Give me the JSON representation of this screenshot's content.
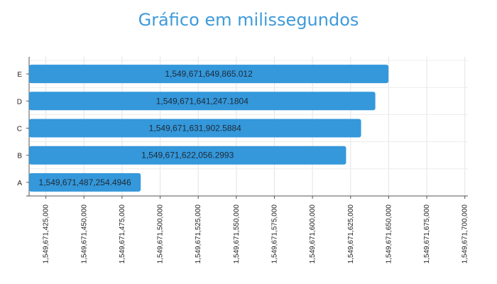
{
  "chart_data": {
    "type": "bar",
    "orientation": "horizontal",
    "title": "Gráfico em milissegundos",
    "categories": [
      "A",
      "B",
      "C",
      "D",
      "E"
    ],
    "values": [
      1549671487254.4946,
      1549671622056.2993,
      1549671631902.5884,
      1549671641247.1804,
      1549671649865.012
    ],
    "value_labels": [
      "1,549,671,487,254.4946",
      "1,549,671,622,056.2993",
      "1,549,671,631,902.5884",
      "1,549,671,641,247.1804",
      "1,549,671,649,865.012"
    ],
    "xlim": [
      1549671414000,
      1549671702000
    ],
    "xticks": [
      1549671425000,
      1549671450000,
      1549671475000,
      1549671500000,
      1549671525000,
      1549671550000,
      1549671575000,
      1549671600000,
      1549671625000,
      1549671650000,
      1549671675000,
      1549671700000
    ],
    "xtick_labels": [
      "1,549,671,425,000",
      "1,549,671,450,000",
      "1,549,671,475,000",
      "1,549,671,500,000",
      "1,549,671,525,000",
      "1,549,671,550,000",
      "1,549,671,575,000",
      "1,549,671,600,000",
      "1,549,671,625,000",
      "1,549,671,650,000",
      "1,549,671,675,000",
      "1,549,671,700,000"
    ],
    "grid": true,
    "bar_color": "#3498db"
  }
}
